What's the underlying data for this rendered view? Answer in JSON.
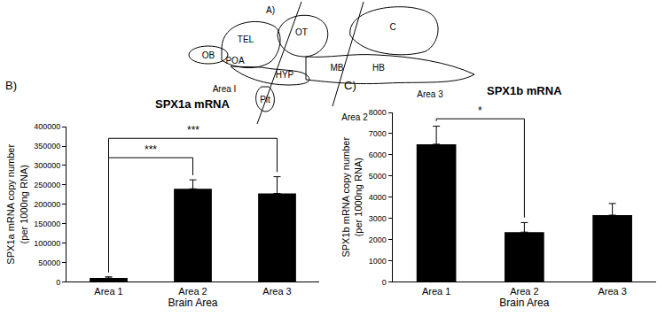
{
  "diagram": {
    "panel_label": "A)",
    "regions": [
      "TEL",
      "OT",
      "C",
      "OB",
      "POA",
      "MB",
      "HB",
      "HYP",
      "Pit"
    ],
    "areas": [
      "Area I",
      "Area 2",
      "Area 3"
    ]
  },
  "chart_data": [
    {
      "panel_label": "B)",
      "type": "bar",
      "title": "SPX1a mRNA",
      "x_label": "Brain Area",
      "y_label": "SPX1a mRNA copy number (per 1000ng RNA)",
      "categories": [
        "Area 1",
        "Area 2",
        "Area 3"
      ],
      "values": [
        10000,
        240000,
        228000
      ],
      "errors": [
        3000,
        23000,
        43000
      ],
      "color": "#000000",
      "ylim": [
        0,
        400000
      ],
      "yticks": [
        0,
        50000,
        100000,
        150000,
        200000,
        250000,
        300000,
        350000,
        400000
      ],
      "grid": false,
      "significance": [
        {
          "from": "Area 1",
          "to": "Area 2",
          "label": "***",
          "y": 320000
        },
        {
          "from": "Area 1",
          "to": "Area 3",
          "label": "***",
          "y": 370000
        }
      ]
    },
    {
      "panel_label": "C)",
      "type": "bar",
      "title": "SPX1b mRNA",
      "x_label": "Brain Area",
      "y_label": "SPX1b mRNA copy number (per 1000ng RNA)",
      "categories": [
        "Area 1",
        "Area 2",
        "Area 3"
      ],
      "values": [
        6500,
        2350,
        3150
      ],
      "errors": [
        850,
        450,
        550
      ],
      "color": "#000000",
      "ylim": [
        0,
        8000
      ],
      "yticks": [
        0,
        1000,
        2000,
        3000,
        4000,
        5000,
        6000,
        7000,
        8000
      ],
      "grid": false,
      "significance": [
        {
          "from": "Area 1",
          "to": "Area 2",
          "label": "*",
          "y": 7700
        }
      ]
    }
  ]
}
